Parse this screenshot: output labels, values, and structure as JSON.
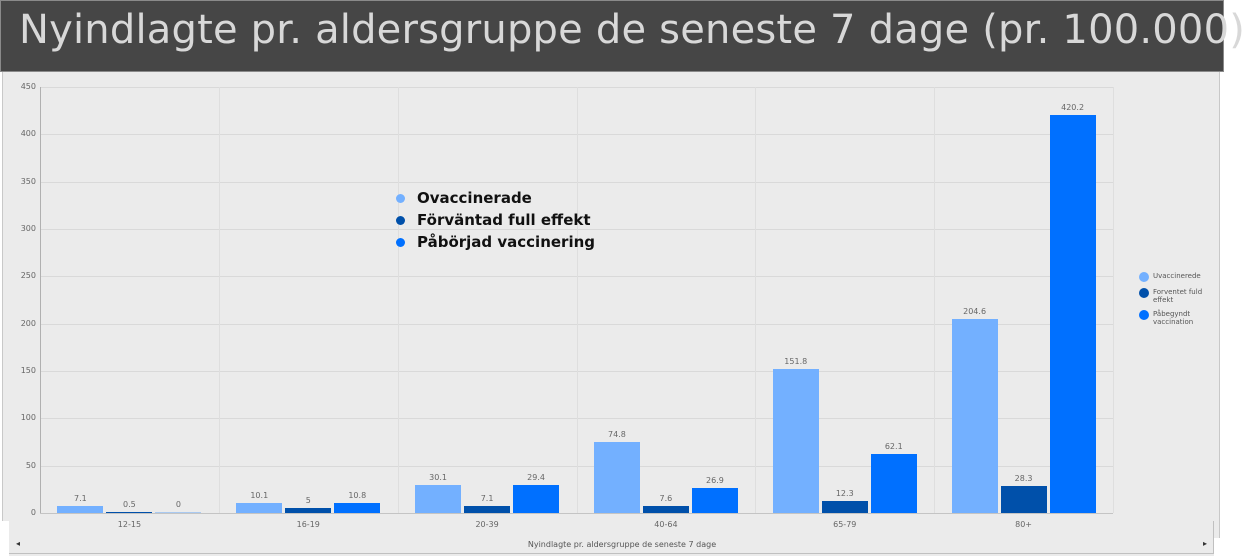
{
  "header": {
    "title": "Nyindlagte pr. aldersgruppe de seneste 7 dage (pr. 100.000)"
  },
  "colors": {
    "unvaccinated": "#73b0ff",
    "full_effect": "#0050aa",
    "started": "#0070ff",
    "titlebar_bg": "#464646",
    "panel_bg": "#ebebeb"
  },
  "overlay_legend": {
    "items": [
      {
        "label": "Ovaccinerade",
        "color": "#73b0ff"
      },
      {
        "label": "Förväntad full effekt",
        "color": "#0050aa"
      },
      {
        "label": "Påbörjad vaccinering",
        "color": "#0070ff"
      }
    ]
  },
  "side_legend": {
    "items": [
      {
        "label": "Uvaccinerede",
        "color": "#73b0ff"
      },
      {
        "label": "Forventet fuld effekt",
        "color": "#0050aa"
      },
      {
        "label": "Påbegyndt vaccination",
        "color": "#0070ff"
      }
    ]
  },
  "scrollbar": {
    "left_arrow": "◂",
    "right_arrow": "▸"
  },
  "chart_data": {
    "type": "bar",
    "title": "Nyindlagte pr. aldersgruppe de seneste 7 dage (pr. 100.000)",
    "xlabel": "Nyindlagte pr. aldersgruppe de seneste 7 dage",
    "ylabel": "",
    "ylim": [
      0,
      450
    ],
    "yticks": [
      0,
      50,
      100,
      150,
      200,
      250,
      300,
      350,
      400,
      450
    ],
    "grid": true,
    "legend_position": "right",
    "categories": [
      "12-15",
      "16-19",
      "20-39",
      "40-64",
      "65-79",
      "80+"
    ],
    "series": [
      {
        "name": "Uvaccinerede",
        "color": "#73b0ff",
        "values": [
          7.1,
          10.1,
          30.1,
          74.8,
          151.8,
          204.6
        ]
      },
      {
        "name": "Forventet fuld effekt",
        "color": "#0050aa",
        "values": [
          0.5,
          5,
          7.1,
          7.6,
          12.3,
          28.3
        ]
      },
      {
        "name": "Påbegyndt vaccination",
        "color": "#0070ff",
        "values": [
          0,
          10.8,
          29.4,
          26.9,
          62.1,
          420.2
        ]
      }
    ]
  }
}
